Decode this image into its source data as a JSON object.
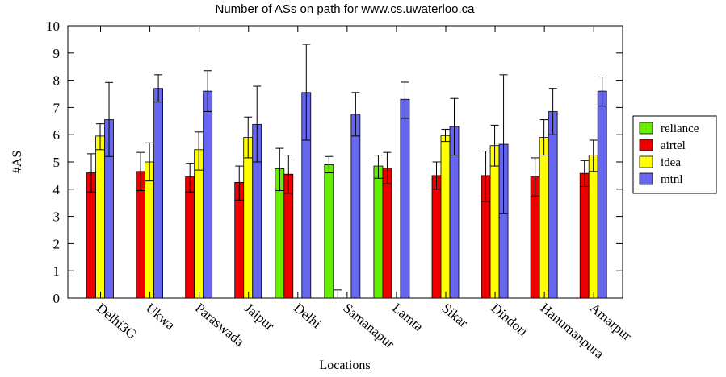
{
  "chart_data": {
    "type": "bar",
    "title": "Number of ASs on path for www.cs.uwaterloo.ca",
    "xlabel": "Locations",
    "ylabel": "#AS",
    "ylim": [
      0,
      10
    ],
    "yticks": [
      "0",
      "1",
      "2",
      "3",
      "4",
      "5",
      "6",
      "7",
      "8",
      "9",
      "10"
    ],
    "legend_position": "right",
    "categories": [
      "Delhi3G",
      "Ukwa",
      "Paraswada",
      "Jaipur",
      "Delhi",
      "Samanapur",
      "Lamta",
      "Sikar",
      "Dindori",
      "Hanumanpura",
      "Amarpur"
    ],
    "series": [
      {
        "name": "reliance",
        "color": "#66ee00",
        "values": [
          null,
          null,
          null,
          null,
          4.75,
          4.9,
          4.85,
          null,
          null,
          null,
          null
        ],
        "err_low": [
          null,
          null,
          null,
          null,
          3.95,
          4.6,
          4.4,
          null,
          null,
          null,
          null
        ],
        "err_high": [
          null,
          null,
          null,
          null,
          5.5,
          5.2,
          5.25,
          null,
          null,
          null,
          null
        ]
      },
      {
        "name": "airtel",
        "color": "#ee0000",
        "values": [
          4.6,
          4.65,
          4.45,
          4.25,
          4.55,
          0,
          4.78,
          4.5,
          4.5,
          4.45,
          4.58
        ],
        "err_low": [
          3.9,
          3.95,
          3.9,
          3.6,
          3.85,
          0,
          4.2,
          4.0,
          3.55,
          3.75,
          4.1
        ],
        "err_high": [
          5.3,
          5.35,
          4.95,
          4.85,
          5.25,
          0.3,
          5.35,
          5.0,
          5.4,
          5.15,
          5.05
        ]
      },
      {
        "name": "idea",
        "color": "#ffff00",
        "values": [
          5.95,
          5.0,
          5.45,
          5.9,
          null,
          null,
          null,
          5.97,
          5.6,
          5.9,
          5.25
        ],
        "err_low": [
          5.45,
          4.3,
          4.7,
          5.15,
          null,
          null,
          null,
          5.75,
          4.85,
          5.25,
          4.65
        ],
        "err_high": [
          6.4,
          5.7,
          6.1,
          6.65,
          null,
          null,
          null,
          6.2,
          6.35,
          6.55,
          5.8
        ]
      },
      {
        "name": "mtnl",
        "color": "#6666ee",
        "values": [
          6.55,
          7.7,
          7.6,
          6.38,
          7.55,
          6.75,
          7.3,
          6.3,
          5.65,
          6.85,
          7.6
        ],
        "err_low": [
          5.2,
          7.2,
          6.85,
          5.0,
          5.8,
          5.95,
          6.6,
          5.25,
          3.1,
          6.0,
          7.05
        ],
        "err_high": [
          7.92,
          8.2,
          8.35,
          7.78,
          9.32,
          7.55,
          7.93,
          7.33,
          8.2,
          7.7,
          8.12
        ]
      }
    ]
  }
}
